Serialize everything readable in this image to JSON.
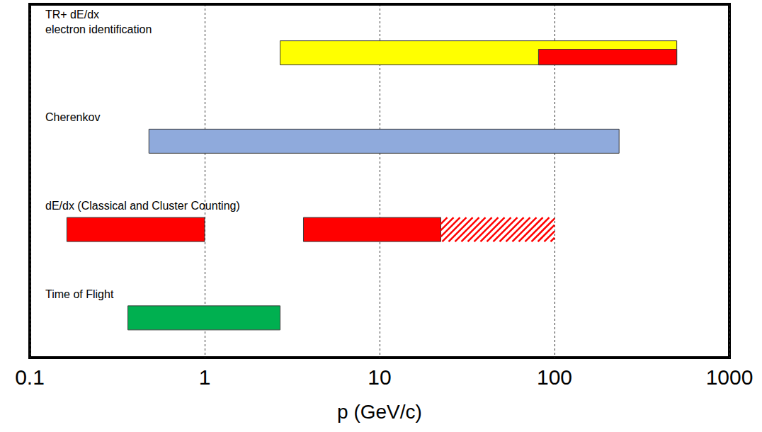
{
  "chart_data": {
    "type": "range_bar",
    "orientation": "horizontal",
    "log": "x",
    "grid": true,
    "tick_labels": "x",
    "xlabel": "p (GeV/c)",
    "xlim": [
      0.1,
      1000
    ],
    "xticks": [
      0.1,
      1,
      10,
      100,
      1000
    ],
    "rows": [
      {
        "label": "TR+ dE/dx\nelectron identification",
        "ranges": [
          {
            "start": 2.7,
            "end": 500,
            "color": "#ffff00"
          },
          {
            "start": 81,
            "end": 500,
            "color": "#ff0000"
          }
        ]
      },
      {
        "label": "Cherenkov",
        "ranges": [
          {
            "start": 0.48,
            "end": 234,
            "color": "#8faadc"
          }
        ]
      },
      {
        "label": "dE/dx (Classical and Cluster Counting)",
        "ranges": [
          {
            "start": 0.163,
            "end": 1.0,
            "color": "#ff0000"
          },
          {
            "start": 3.67,
            "end": 22.4,
            "color": "#ff0000"
          },
          {
            "start": 22.4,
            "end": 100,
            "color": "#ff0000",
            "line_style": "hatched"
          }
        ]
      },
      {
        "label": "Time of Flight",
        "ranges": [
          {
            "start": 0.364,
            "end": 2.7,
            "color": "#00b050"
          }
        ]
      }
    ]
  }
}
